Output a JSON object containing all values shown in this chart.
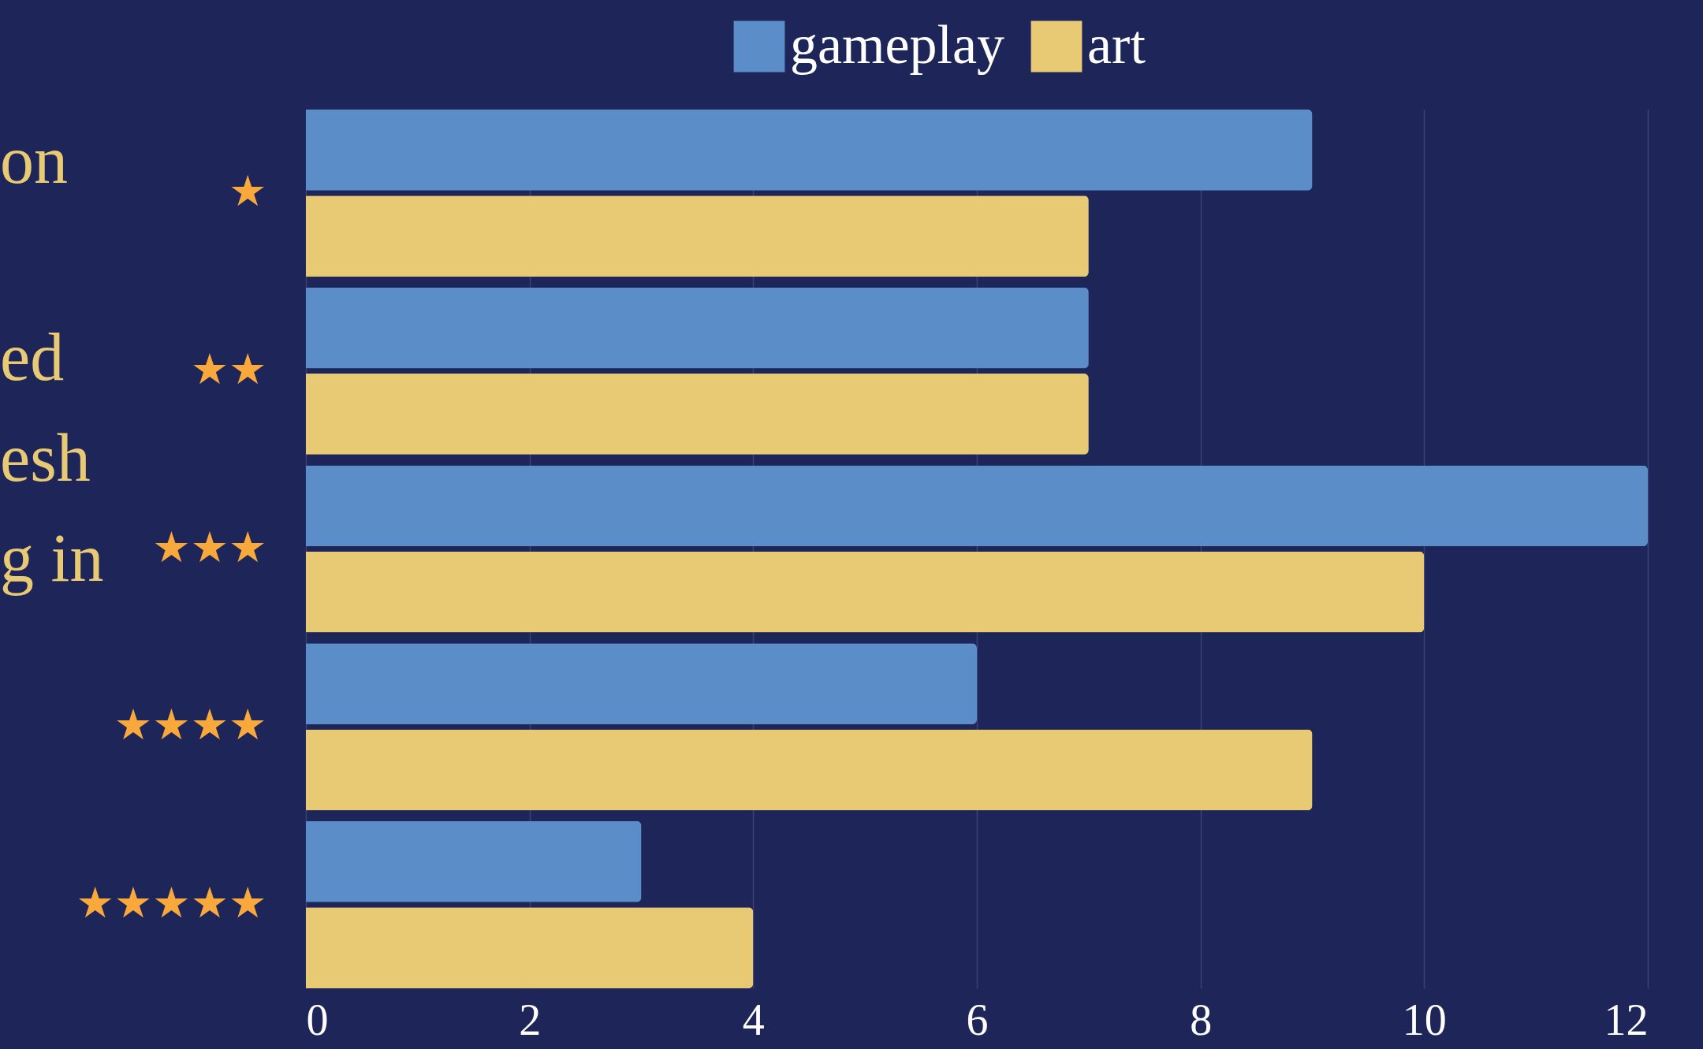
{
  "chart_data": {
    "type": "bar",
    "orientation": "horizontal",
    "categories": [
      "★",
      "★★",
      "★★★",
      "★★★★",
      "★★★★★"
    ],
    "series": [
      {
        "name": "gameplay",
        "color": "#5b8dc8",
        "values": [
          9,
          7,
          12,
          6,
          3
        ]
      },
      {
        "name": "art",
        "color": "#e8c974",
        "values": [
          7,
          7,
          10,
          9,
          4
        ]
      }
    ],
    "xlim": [
      0,
      12
    ],
    "xticks": [
      0,
      2,
      4,
      6,
      8,
      10,
      12
    ],
    "grid": "x",
    "legend": "top",
    "annotations": [
      "on",
      "ed",
      "esh",
      "g in"
    ]
  }
}
